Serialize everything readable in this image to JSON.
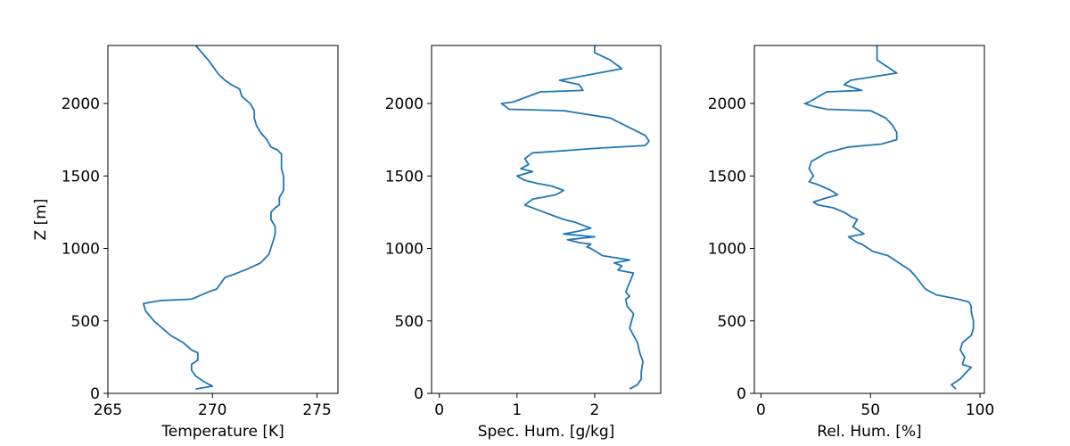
{
  "chart_data": [
    {
      "type": "line",
      "xlabel": "Temperature [K]",
      "ylabel": "Z [m]",
      "xlim": [
        265,
        276
      ],
      "ylim": [
        0,
        2400
      ],
      "xticks": [
        265,
        270,
        275
      ],
      "yticks": [
        0,
        500,
        1000,
        1500,
        2000
      ],
      "grid": false,
      "color": "#1f77b4",
      "series": [
        {
          "x": [
            269.2,
            270.0,
            269.6,
            269.2,
            269.0,
            269.0,
            269.3,
            269.3,
            269.0,
            268.6,
            268.0,
            267.6,
            267.2,
            266.8,
            266.7,
            267.5,
            269.0,
            269.8,
            270.2,
            270.4,
            270.6,
            271.0,
            271.7,
            272.3,
            272.7,
            272.9,
            273.0,
            273.0,
            272.8,
            272.8,
            273.0,
            273.2,
            273.2,
            273.4,
            273.4,
            273.3,
            273.3,
            273.3,
            273.1,
            272.8,
            272.6,
            272.3,
            272.1,
            272.0,
            272.0,
            271.8,
            271.4,
            271.3,
            270.9,
            270.6,
            270.3,
            270.0,
            269.8,
            269.5,
            269.2
          ],
          "y": [
            30,
            50,
            80,
            120,
            160,
            200,
            230,
            280,
            300,
            350,
            400,
            450,
            500,
            570,
            620,
            640,
            650,
            700,
            720,
            760,
            800,
            820,
            860,
            900,
            960,
            1050,
            1100,
            1150,
            1200,
            1250,
            1280,
            1300,
            1350,
            1400,
            1500,
            1550,
            1600,
            1650,
            1680,
            1700,
            1750,
            1800,
            1850,
            1900,
            1950,
            2000,
            2050,
            2100,
            2130,
            2160,
            2200,
            2260,
            2300,
            2350,
            2400
          ]
        }
      ]
    },
    {
      "type": "line",
      "xlabel": "Spec. Hum. [g/kg]",
      "ylabel": "",
      "xlim": [
        -0.1,
        2.85
      ],
      "ylim": [
        0,
        2400
      ],
      "xticks": [
        0,
        1,
        2
      ],
      "yticks": [
        0,
        500,
        1000,
        1500,
        2000
      ],
      "grid": false,
      "color": "#1f77b4",
      "series": [
        {
          "x": [
            2.45,
            2.55,
            2.6,
            2.6,
            2.62,
            2.58,
            2.55,
            2.5,
            2.45,
            2.5,
            2.42,
            2.4,
            2.45,
            2.4,
            2.5,
            2.3,
            2.35,
            2.25,
            2.45,
            2.1,
            1.95,
            1.9,
            1.95,
            1.8,
            1.65,
            2.0,
            1.6,
            1.8,
            1.95,
            1.75,
            1.6,
            1.3,
            1.1,
            1.2,
            1.5,
            1.6,
            1.45,
            1.25,
            1.1,
            1.0,
            1.2,
            1.05,
            1.15,
            1.1,
            1.2,
            1.5,
            2.0,
            2.65,
            2.7,
            2.65,
            2.5,
            2.2,
            1.6,
            0.9,
            0.85,
            0.8,
            0.95,
            1.3,
            1.85,
            1.8,
            1.55,
            2.35,
            2.2,
            2.0,
            2.0
          ],
          "y": [
            30,
            60,
            100,
            150,
            220,
            280,
            350,
            400,
            450,
            550,
            600,
            650,
            670,
            700,
            830,
            850,
            880,
            900,
            920,
            950,
            1000,
            1010,
            1030,
            1040,
            1060,
            1080,
            1100,
            1120,
            1140,
            1180,
            1200,
            1260,
            1300,
            1340,
            1370,
            1400,
            1430,
            1450,
            1470,
            1500,
            1530,
            1550,
            1580,
            1620,
            1660,
            1670,
            1690,
            1710,
            1740,
            1780,
            1820,
            1900,
            1950,
            1960,
            1980,
            2000,
            2010,
            2080,
            2090,
            2130,
            2160,
            2240,
            2300,
            2350,
            2400
          ]
        }
      ]
    },
    {
      "type": "line",
      "xlabel": "Rel. Hum. [%]",
      "ylabel": "",
      "xlim": [
        -3,
        102
      ],
      "ylim": [
        0,
        2400
      ],
      "xticks": [
        0,
        50,
        100
      ],
      "yticks": [
        0,
        500,
        1000,
        1500,
        2000
      ],
      "grid": false,
      "color": "#1f77b4",
      "series": [
        {
          "x": [
            89,
            87,
            91,
            94,
            96,
            92,
            93,
            91,
            92,
            96,
            97,
            97,
            96,
            96,
            95,
            90,
            80,
            75,
            73,
            71,
            68,
            65,
            63,
            58,
            51,
            49,
            47,
            46,
            44,
            42,
            40,
            47,
            42,
            44,
            41,
            38,
            33,
            26,
            24,
            28,
            35,
            32,
            26,
            22,
            24,
            22,
            23,
            30,
            40,
            55,
            62,
            62,
            60,
            57,
            50,
            30,
            24,
            20,
            22,
            30,
            46,
            38,
            41,
            62,
            57,
            53,
            53
          ],
          "y": [
            30,
            60,
            100,
            150,
            180,
            200,
            250,
            300,
            350,
            400,
            450,
            500,
            560,
            600,
            630,
            650,
            680,
            720,
            760,
            800,
            850,
            880,
            900,
            950,
            980,
            1000,
            1020,
            1030,
            1040,
            1060,
            1080,
            1100,
            1150,
            1200,
            1220,
            1250,
            1280,
            1300,
            1320,
            1340,
            1370,
            1400,
            1440,
            1460,
            1500,
            1550,
            1600,
            1660,
            1700,
            1720,
            1750,
            1800,
            1850,
            1900,
            1950,
            1960,
            1980,
            2000,
            2010,
            2080,
            2090,
            2130,
            2160,
            2210,
            2260,
            2300,
            2400
          ]
        }
      ]
    }
  ]
}
